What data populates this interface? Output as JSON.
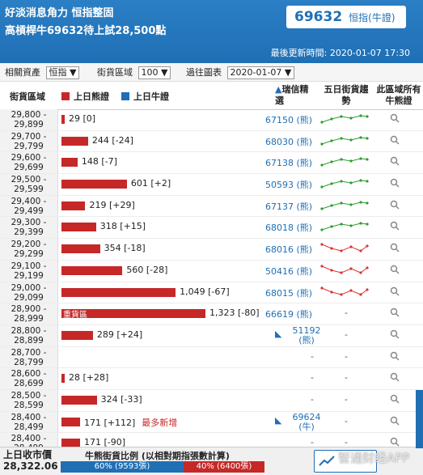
{
  "header": {
    "line1": "好淡消息角力 恒指整固",
    "line2": "高槓桿牛69632待上試28,500點",
    "update_time": "最後更新時間: 2020-01-07 17:30",
    "code": "69632",
    "code_label": "恒指(牛證)"
  },
  "controls": {
    "asset_label": "相關資產",
    "asset_value": "恒指",
    "street_label": "街貨區域",
    "street_value": "100",
    "past_label": "過往圖表",
    "past_value": "2020-01-07"
  },
  "columns": {
    "range": "街貨區域",
    "bear": "上日熊證",
    "bull": "上日牛證",
    "pick": "瑞信精選",
    "trend": "五日街貨趨勢",
    "all_bulls": "此區域所有牛熊證"
  },
  "rows": [
    {
      "from": "29,800 -",
      "to": "29,899",
      "value": 29,
      "label": "29 [0]",
      "code": "67150 (熊)",
      "trend": "up"
    },
    {
      "from": "29,700 -",
      "to": "29,799",
      "value": 244,
      "label": "244 [-24]",
      "code": "68030 (熊)",
      "trend": "up"
    },
    {
      "from": "29,600 -",
      "to": "29,699",
      "value": 148,
      "label": "148 [-7]",
      "code": "67138 (熊)",
      "trend": "up"
    },
    {
      "from": "29,500 -",
      "to": "29,599",
      "value": 601,
      "label": "601 [+2]",
      "code": "50593 (熊)",
      "trend": "up"
    },
    {
      "from": "29,400 -",
      "to": "29,499",
      "value": 219,
      "label": "219 [+29]",
      "code": "67137 (熊)",
      "trend": "up"
    },
    {
      "from": "29,300 -",
      "to": "29,399",
      "value": 318,
      "label": "318 [+15]",
      "code": "68018 (熊)",
      "trend": "up"
    },
    {
      "from": "29,200 -",
      "to": "29,299",
      "value": 354,
      "label": "354 [-18]",
      "code": "68016 (熊)",
      "trend": "down"
    },
    {
      "from": "29,100 -",
      "to": "29,199",
      "value": 560,
      "label": "560 [-28]",
      "code": "50416 (熊)",
      "trend": "down"
    },
    {
      "from": "29,000 -",
      "to": "29,099",
      "value": 1049,
      "label": "1,049 [-67]",
      "code": "68015 (熊)",
      "trend": "down"
    },
    {
      "from": "28,900 -",
      "to": "28,999",
      "value": 1323,
      "label": "1,323 [-80]",
      "code": "66619 (熊)",
      "trend": "none",
      "inbar": "重貨區"
    },
    {
      "from": "28,800 -",
      "to": "28,899",
      "value": 289,
      "label": "289 [+24]",
      "code": "51192",
      "code_sub": "(熊)",
      "trend": "none",
      "icon": true
    },
    {
      "from": "28,700 -",
      "to": "28,799",
      "value": 0,
      "label": "",
      "code": "",
      "trend": "none"
    },
    {
      "from": "28,600 -",
      "to": "28,699",
      "value": 28,
      "label": "28 [+28]",
      "code": "",
      "trend": "none"
    },
    {
      "from": "28,500 -",
      "to": "28,599",
      "value": 324,
      "label": "324 [-33]",
      "code": "",
      "trend": "none"
    },
    {
      "from": "28,400 -",
      "to": "28,499",
      "value": 171,
      "label": "171 [+112]",
      "note": "最多新增",
      "code": "69624",
      "code_sub": "(牛)",
      "trend": "none",
      "icon": true
    },
    {
      "from": "28,400 -",
      "to": "28,499",
      "value": 171,
      "label": "171 [-90]",
      "code": "",
      "trend": "none"
    }
  ],
  "footer": {
    "close_label": "上日收市價",
    "close_value": "28,322.06",
    "ratio_title": "牛熊街貨比例 (以相對期指張數計算)",
    "blue": "60% (9593張)",
    "red": "40% (6400張)",
    "watermark": "智通财经APP"
  }
}
